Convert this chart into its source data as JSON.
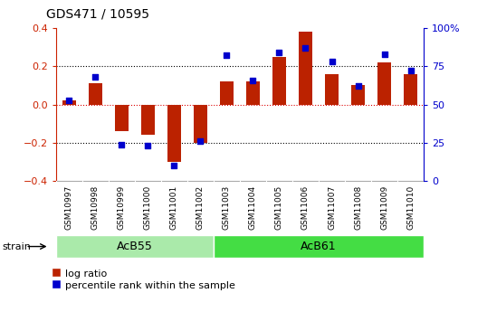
{
  "title": "GDS471 / 10595",
  "samples": [
    "GSM10997",
    "GSM10998",
    "GSM10999",
    "GSM11000",
    "GSM11001",
    "GSM11002",
    "GSM11003",
    "GSM11004",
    "GSM11005",
    "GSM11006",
    "GSM11007",
    "GSM11008",
    "GSM11009",
    "GSM11010"
  ],
  "log_ratio": [
    0.02,
    0.11,
    -0.14,
    -0.16,
    -0.3,
    -0.2,
    0.12,
    0.12,
    0.25,
    0.38,
    0.16,
    0.1,
    0.22,
    0.16
  ],
  "percentile_rank": [
    53,
    68,
    24,
    23,
    10,
    26,
    82,
    66,
    84,
    87,
    78,
    62,
    83,
    72
  ],
  "groups": [
    {
      "label": "AcB55",
      "start": 0,
      "end": 6,
      "color": "#aaeaaa"
    },
    {
      "label": "AcB61",
      "start": 6,
      "end": 14,
      "color": "#44dd44"
    }
  ],
  "bar_color": "#bb2200",
  "dot_color": "#0000cc",
  "ylim_left": [
    -0.4,
    0.4
  ],
  "ylim_right": [
    0,
    100
  ],
  "yticks_left": [
    -0.4,
    -0.2,
    0.0,
    0.2,
    0.4
  ],
  "yticks_right": [
    0,
    25,
    50,
    75,
    100
  ],
  "ytick_labels_right": [
    "0",
    "25",
    "50",
    "75",
    "100%"
  ],
  "hlines_dotted": [
    0.2,
    -0.2
  ],
  "hline_zero_color": "#dd0000",
  "bg_color": "#ffffff",
  "left_axis_color": "#cc2200",
  "right_axis_color": "#0000cc",
  "tick_label_bg": "#cccccc",
  "legend_items": [
    "log ratio",
    "percentile rank within the sample"
  ],
  "strain_label": "strain"
}
